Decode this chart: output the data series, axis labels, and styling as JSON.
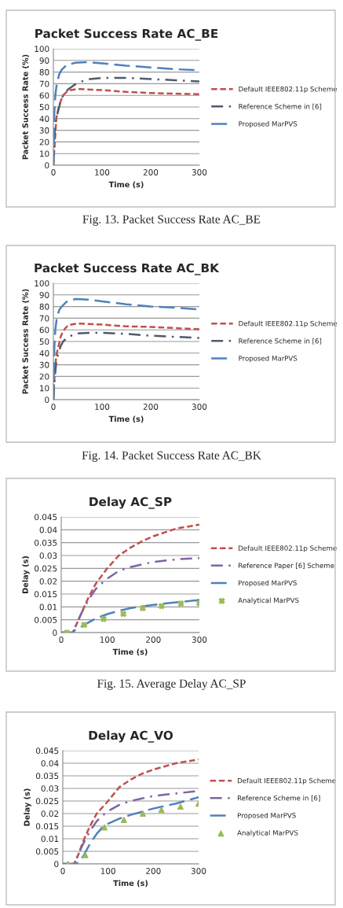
{
  "chart_data": [
    {
      "type": "line",
      "title": "Packet Success Rate AC_BE",
      "xlabel": "Time (s)",
      "ylabel": "Packet Success Rate (%)",
      "xlim": [
        0,
        300
      ],
      "xticks": [
        0,
        100,
        200,
        300
      ],
      "ylim": [
        0,
        100
      ],
      "yticks": [
        0,
        10,
        20,
        30,
        40,
        50,
        60,
        70,
        80,
        90,
        100
      ],
      "grid": "y",
      "legend": "right",
      "annotations": [
        "Fig. 13. Packet Success Rate AC_BE"
      ],
      "series": [
        {
          "name": "Default IEEE802.11p Scheme",
          "color": "#c0504d",
          "line_style": "dashed",
          "x": [
            0,
            3,
            6,
            10,
            15,
            20,
            30,
            50,
            100,
            150,
            200,
            250,
            300
          ],
          "values": [
            0,
            20,
            40,
            48,
            55,
            60,
            64,
            65.5,
            64.5,
            63,
            62,
            61.5,
            61
          ]
        },
        {
          "name": "Reference Scheme in [6]",
          "color": "#4f5b6b",
          "line_style": "dashdot",
          "x": [
            0,
            3,
            6,
            10,
            15,
            20,
            30,
            50,
            75,
            100,
            150,
            200,
            250,
            300
          ],
          "values": [
            0,
            30,
            40,
            47,
            55,
            60,
            65,
            71,
            74,
            75,
            75,
            74,
            73,
            72
          ]
        },
        {
          "name": "Proposed MarPVS",
          "color": "#4f81bd",
          "line_style": "longdash",
          "x": [
            0,
            2,
            4,
            7,
            12,
            17,
            27,
            45,
            70,
            100,
            150,
            200,
            250,
            300
          ],
          "values": [
            0,
            45,
            60,
            70,
            78,
            82,
            86,
            88,
            88.5,
            87.5,
            85.5,
            84,
            82.5,
            81.5
          ]
        }
      ]
    },
    {
      "type": "line",
      "title": "Packet Success Rate AC_BK",
      "xlabel": "Time (s)",
      "ylabel": "Packet Success Rate (%)",
      "xlim": [
        0,
        300
      ],
      "xticks": [
        0,
        100,
        200,
        300
      ],
      "ylim": [
        0,
        100
      ],
      "yticks": [
        0,
        10,
        20,
        30,
        40,
        50,
        60,
        70,
        80,
        90,
        100
      ],
      "grid": "y",
      "legend": "right",
      "annotations": [
        "Fig. 14. Packet Success Rate AC_BK"
      ],
      "series": [
        {
          "name": "Default IEEE802.11p Scheme",
          "color": "#c0504d",
          "line_style": "dashed",
          "x": [
            0,
            3,
            6,
            10,
            15,
            20,
            30,
            50,
            100,
            150,
            200,
            250,
            300
          ],
          "values": [
            0,
            25,
            38,
            45,
            54,
            59,
            64,
            65.5,
            64.5,
            63,
            62.5,
            61.5,
            60.5
          ]
        },
        {
          "name": "Reference Scheme in [6]",
          "color": "#4f5b6b",
          "line_style": "dashdot",
          "x": [
            0,
            3,
            6,
            10,
            15,
            20,
            30,
            50,
            75,
            100,
            150,
            200,
            250,
            300
          ],
          "values": [
            0,
            20,
            32,
            40,
            46,
            50,
            54,
            57,
            57.5,
            57.5,
            56.5,
            55,
            54,
            53
          ]
        },
        {
          "name": "Proposed MarPVS",
          "color": "#4f81bd",
          "line_style": "longdash",
          "x": [
            0,
            2,
            4,
            7,
            12,
            17,
            27,
            45,
            70,
            100,
            150,
            200,
            250,
            300
          ],
          "values": [
            0,
            45,
            60,
            70,
            77,
            80,
            84,
            86.5,
            86,
            84.5,
            82,
            80,
            79,
            77.5
          ]
        }
      ]
    },
    {
      "type": "line",
      "title": "Delay AC_SP",
      "xlabel": "Time (s)",
      "ylabel": "Delay (s)",
      "xlim": [
        0,
        300
      ],
      "xticks": [
        0,
        100,
        200,
        300
      ],
      "ylim": [
        0,
        0.045
      ],
      "yticks": [
        0,
        0.005,
        0.01,
        0.015,
        0.02,
        0.025,
        0.03,
        0.035,
        0.04,
        0.045
      ],
      "grid": "y",
      "legend": "right",
      "annotations": [
        "Fig. 15. Average Delay AC_SP"
      ],
      "series": [
        {
          "name": "Default IEEE802.11p Scheme",
          "color": "#c0504d",
          "line_style": "dashed",
          "x": [
            0,
            25,
            35,
            45,
            60,
            75,
            100,
            125,
            150,
            175,
            200,
            250,
            300
          ],
          "values": [
            0,
            0,
            0.004,
            0.008,
            0.014,
            0.019,
            0.025,
            0.03,
            0.033,
            0.0355,
            0.0375,
            0.0405,
            0.042
          ]
        },
        {
          "name": "Reference Paper [6] Scheme",
          "color": "#8064a2",
          "line_style": "dashdot",
          "x": [
            0,
            25,
            35,
            45,
            60,
            75,
            90,
            100,
            125,
            150,
            175,
            200,
            250,
            300
          ],
          "values": [
            0,
            0,
            0.004,
            0.008,
            0.013,
            0.017,
            0.0195,
            0.021,
            0.024,
            0.0255,
            0.0265,
            0.0275,
            0.0285,
            0.029
          ]
        },
        {
          "name": "Proposed MarPVS",
          "color": "#4f81bd",
          "line_style": "longdash",
          "x": [
            0,
            25,
            30,
            40,
            50,
            75,
            100,
            125,
            150,
            175,
            200,
            250,
            300
          ],
          "values": [
            0,
            0,
            0.001,
            0.002,
            0.003,
            0.0055,
            0.0072,
            0.0085,
            0.0095,
            0.0102,
            0.0108,
            0.0118,
            0.0127
          ]
        },
        {
          "name": "Analytical MarPVS",
          "type": "scatter",
          "marker": "cross",
          "color": "#9bbb59",
          "x": [
            12,
            50,
            92,
            135,
            177,
            218,
            260,
            300
          ],
          "values": [
            0,
            0.003,
            0.0053,
            0.0073,
            0.0095,
            0.0103,
            0.0113,
            0.0115
          ]
        }
      ]
    },
    {
      "type": "line",
      "title": "Delay AC_VO",
      "xlabel": "Time (s)",
      "ylabel": "Delay (s)",
      "xlim": [
        0,
        300
      ],
      "xticks": [
        0,
        100,
        200,
        300
      ],
      "ylim": [
        0,
        0.045
      ],
      "yticks": [
        0,
        0.005,
        0.01,
        0.015,
        0.02,
        0.025,
        0.03,
        0.035,
        0.04,
        0.045
      ],
      "grid": "y",
      "legend": "right",
      "series": [
        {
          "name": "Default IEEE802.11p Scheme",
          "color": "#c0504d",
          "line_style": "dashed",
          "x": [
            0,
            25,
            35,
            45,
            60,
            75,
            100,
            125,
            150,
            175,
            200,
            250,
            300
          ],
          "values": [
            0,
            0,
            0.004,
            0.009,
            0.015,
            0.02,
            0.025,
            0.0305,
            0.0335,
            0.0358,
            0.0375,
            0.04,
            0.0415
          ]
        },
        {
          "name": "Reference Scheme in [6]",
          "color": "#8064a2",
          "line_style": "dashdot",
          "x": [
            0,
            25,
            35,
            45,
            60,
            75,
            90,
            100,
            125,
            150,
            175,
            200,
            250,
            300
          ],
          "values": [
            0,
            0,
            0.004,
            0.008,
            0.013,
            0.017,
            0.0195,
            0.021,
            0.0235,
            0.025,
            0.026,
            0.027,
            0.028,
            0.029
          ]
        },
        {
          "name": "Proposed MarPVS",
          "color": "#4f81bd",
          "line_style": "longdash",
          "x": [
            0,
            25,
            35,
            45,
            60,
            75,
            90,
            100,
            125,
            150,
            200,
            250,
            300
          ],
          "values": [
            0,
            0,
            0.0005,
            0.003,
            0.008,
            0.012,
            0.015,
            0.016,
            0.018,
            0.0195,
            0.022,
            0.024,
            0.0265
          ]
        },
        {
          "name": "Analytical MarPVS",
          "type": "scatter",
          "marker": "triangle",
          "color": "#9bbb59",
          "x": [
            12,
            50,
            92,
            135,
            177,
            218,
            260,
            300
          ],
          "values": [
            0,
            0.0035,
            0.0145,
            0.0175,
            0.02,
            0.0215,
            0.0228,
            0.024
          ]
        }
      ]
    }
  ]
}
